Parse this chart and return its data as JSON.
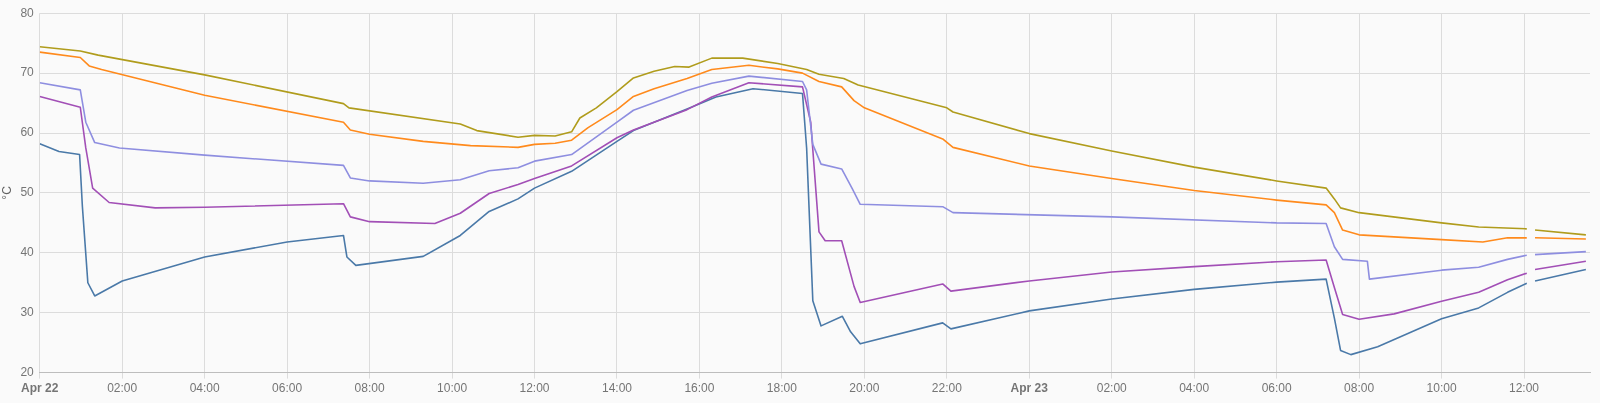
{
  "chart_data": {
    "type": "line",
    "ylabel": "°C",
    "xlim": [
      "--04-22T00:00",
      "--04-23T13:36"
    ],
    "ylim": [
      20,
      80
    ],
    "xticks": [
      {
        "value": "--04-22T00:00",
        "label": "Apr 22"
      },
      {
        "value": "--04-22T02:00",
        "label": "02:00"
      },
      {
        "value": "--04-22T04:00",
        "label": "04:00"
      },
      {
        "value": "--04-22T06:00",
        "label": "06:00"
      },
      {
        "value": "--04-22T08:00",
        "label": "08:00"
      },
      {
        "value": "--04-22T10:00",
        "label": "10:00"
      },
      {
        "value": "--04-22T12:00",
        "label": "12:00"
      },
      {
        "value": "--04-22T14:00",
        "label": "14:00"
      },
      {
        "value": "--04-22T16:00",
        "label": "16:00"
      },
      {
        "value": "--04-22T18:00",
        "label": "18:00"
      },
      {
        "value": "--04-22T20:00",
        "label": "20:00"
      },
      {
        "value": "--04-22T22:00",
        "label": "22:00"
      },
      {
        "value": "--04-23T00:00",
        "label": "Apr 23"
      },
      {
        "value": "--04-23T02:00",
        "label": "02:00"
      },
      {
        "value": "--04-23T04:00",
        "label": "04:00"
      },
      {
        "value": "--04-23T06:00",
        "label": "06:00"
      },
      {
        "value": "--04-23T08:00",
        "label": "08:00"
      },
      {
        "value": "--04-23T10:00",
        "label": "10:00"
      },
      {
        "value": "--04-23T12:00",
        "label": "12:00"
      }
    ],
    "yticks": [
      20,
      30,
      40,
      50,
      60,
      70,
      80
    ],
    "grid": true,
    "legend": false,
    "marker": "none",
    "line_style": "solid",
    "series": [
      {
        "color": "#b09c1c",
        "x": [
          "--04-22T00:00",
          "--04-22T00:59",
          "--04-22T01:25",
          "--04-22T04:00",
          "--04-22T07:22",
          "--04-22T07:30",
          "--04-22T10:12",
          "--04-22T10:36",
          "--04-22T11:36",
          "--04-22T12:00",
          "--04-22T12:30",
          "--04-22T12:54",
          "--04-22T13:06",
          "--04-22T13:30",
          "--04-22T14:00",
          "--04-22T14:24",
          "--04-22T14:54",
          "--04-22T15:24",
          "--04-22T15:45",
          "--04-22T16:18",
          "--04-22T17:03",
          "--04-22T17:54",
          "--04-22T18:36",
          "--04-22T18:54",
          "--04-22T19:30",
          "--04-22T19:51",
          "--04-22T22:00",
          "--04-22T22:09",
          "--04-23T00:00",
          "--04-23T02:00",
          "--04-23T04:00",
          "--04-23T06:00",
          "--04-23T07:12",
          "--04-23T07:24",
          "--04-23T07:33",
          "--04-23T08:00",
          "--04-23T10:00",
          "--04-23T10:54",
          "--04-23T12:04",
          "--04-23T12:10",
          "--04-23T12:16",
          "--04-23T13:30"
        ],
        "values": [
          74.4,
          73.7,
          73,
          69.7,
          64.9,
          64.2,
          61.5,
          60.4,
          59.3,
          59.6,
          59.5,
          60.2,
          62.5,
          64.2,
          66.9,
          69.2,
          70.3,
          71.1,
          71,
          72.5,
          72.5,
          71.6,
          70.6,
          69.8,
          69.1,
          68,
          64.2,
          63.5,
          59.9,
          57,
          54.3,
          52,
          50.8,
          49,
          47.5,
          46.7,
          45,
          44.3,
          44,
          null,
          43.8,
          43
        ]
      },
      {
        "color": "#ff8a1c",
        "x": [
          "--04-22T00:00",
          "--04-22T00:59",
          "--04-22T01:12",
          "--04-22T01:30",
          "--04-22T04:00",
          "--04-22T07:22",
          "--04-22T07:32",
          "--04-22T08:00",
          "--04-22T09:18",
          "--04-22T10:27",
          "--04-22T11:36",
          "--04-22T12:00",
          "--04-22T12:30",
          "--04-22T12:54",
          "--04-22T13:18",
          "--04-22T14:00",
          "--04-22T14:24",
          "--04-22T14:54",
          "--04-22T15:42",
          "--04-22T16:18",
          "--04-22T17:12",
          "--04-22T17:54",
          "--04-22T18:30",
          "--04-22T18:54",
          "--04-22T19:27",
          "--04-22T19:45",
          "--04-22T20:00",
          "--04-22T21:54",
          "--04-22T22:09",
          "--04-23T00:00",
          "--04-23T02:00",
          "--04-23T04:00",
          "--04-23T06:00",
          "--04-23T07:12",
          "--04-23T07:24",
          "--04-23T07:36",
          "--04-23T08:00",
          "--04-23T10:00",
          "--04-23T11:00",
          "--04-23T11:36",
          "--04-23T12:04",
          "--04-23T12:10",
          "--04-23T12:16",
          "--04-23T13:30"
        ],
        "values": [
          73.5,
          72.6,
          71.2,
          70.6,
          66.3,
          61.8,
          60.5,
          59.8,
          58.6,
          57.9,
          57.6,
          58.1,
          58.3,
          58.8,
          60.9,
          63.9,
          66.1,
          67.4,
          69.1,
          70.6,
          71.3,
          70.7,
          70,
          68.6,
          67.7,
          65.4,
          64.2,
          59,
          57.6,
          54.5,
          52.4,
          50.4,
          48.8,
          48,
          46.7,
          43.8,
          43,
          42.2,
          41.8,
          42.5,
          42.5,
          null,
          42.5,
          42.3
        ]
      },
      {
        "color": "#8e8ee0",
        "x": [
          "--04-22T00:00",
          "--04-22T00:59",
          "--04-22T01:07",
          "--04-22T01:20",
          "--04-22T01:56",
          "--04-22T04:00",
          "--04-22T07:22",
          "--04-22T07:32",
          "--04-22T08:00",
          "--04-22T09:18",
          "--04-22T10:12",
          "--04-22T10:54",
          "--04-22T11:36",
          "--04-22T12:00",
          "--04-22T12:54",
          "--04-22T14:00",
          "--04-22T14:24",
          "--04-22T15:42",
          "--04-22T16:18",
          "--04-22T17:12",
          "--04-22T18:30",
          "--04-22T18:36",
          "--04-22T18:45",
          "--04-22T18:57",
          "--04-22T19:27",
          "--04-22T19:42",
          "--04-22T19:54",
          "--04-22T21:54",
          "--04-22T22:09",
          "--04-23T02:00",
          "--04-23T06:00",
          "--04-23T07:12",
          "--04-23T07:24",
          "--04-23T07:36",
          "--04-23T08:12",
          "--04-23T08:15",
          "--04-23T10:00",
          "--04-23T10:54",
          "--04-23T11:36",
          "--04-23T12:04",
          "--04-23T12:10",
          "--04-23T12:16",
          "--04-23T13:30"
        ],
        "values": [
          68.4,
          67.2,
          61.8,
          58.4,
          57.5,
          56.3,
          54.6,
          52.5,
          52,
          51.6,
          52.2,
          53.7,
          54.2,
          55.3,
          56.4,
          61.8,
          63.8,
          67.1,
          68.3,
          69.5,
          68.6,
          67.2,
          58.1,
          54.8,
          54,
          50.8,
          48.1,
          47.7,
          46.7,
          46,
          45,
          44.9,
          41,
          38.9,
          38.6,
          35.6,
          37.1,
          37.6,
          38.9,
          39.6,
          null,
          39.7,
          40.2
        ]
      },
      {
        "color": "#a24fb6",
        "x": [
          "--04-22T00:00",
          "--04-22T00:59",
          "--04-22T01:07",
          "--04-22T01:17",
          "--04-22T01:41",
          "--04-22T02:48",
          "--04-22T04:00",
          "--04-22T07:22",
          "--04-22T07:32",
          "--04-22T08:00",
          "--04-22T09:35",
          "--04-22T10:12",
          "--04-22T10:54",
          "--04-22T11:36",
          "--04-22T12:00",
          "--04-22T12:54",
          "--04-22T14:00",
          "--04-22T14:24",
          "--04-22T15:42",
          "--04-22T16:18",
          "--04-22T17:12",
          "--04-22T18:30",
          "--04-22T18:42",
          "--04-22T18:54",
          "--04-22T19:03",
          "--04-22T19:27",
          "--04-22T19:45",
          "--04-22T19:54",
          "--04-22T21:54",
          "--04-22T22:06",
          "--04-23T00:00",
          "--04-23T02:00",
          "--04-23T04:00",
          "--04-23T06:00",
          "--04-23T07:12",
          "--04-23T07:24",
          "--04-23T07:36",
          "--04-23T08:00",
          "--04-23T08:51",
          "--04-23T10:00",
          "--04-23T10:54",
          "--04-23T11:36",
          "--04-23T12:04",
          "--04-23T12:10",
          "--04-23T12:16",
          "--04-23T13:30"
        ],
        "values": [
          66.1,
          64.3,
          57.5,
          50.8,
          48.4,
          47.5,
          47.6,
          48.2,
          46,
          45.2,
          44.9,
          46.6,
          49.9,
          51.4,
          52.4,
          54.5,
          59.2,
          60.5,
          63.9,
          66,
          68.4,
          67.7,
          61.8,
          43.5,
          42,
          42,
          34.4,
          31.7,
          34.8,
          33.6,
          35.3,
          36.8,
          37.7,
          38.5,
          38.8,
          34.2,
          29.7,
          28.9,
          29.8,
          31.9,
          33.4,
          35.5,
          36.6,
          null,
          37.2,
          38.6
        ]
      },
      {
        "color": "#4a79a8",
        "x": [
          "--04-22T00:00",
          "--04-22T00:28",
          "--04-22T00:58",
          "--04-22T01:02",
          "--04-22T01:10",
          "--04-22T01:20",
          "--04-22T02:00",
          "--04-22T04:00",
          "--04-22T06:00",
          "--04-22T07:22",
          "--04-22T07:27",
          "--04-22T07:40",
          "--04-22T09:18",
          "--04-22T10:12",
          "--04-22T10:54",
          "--04-22T11:36",
          "--04-22T12:00",
          "--04-22T12:54",
          "--04-22T14:00",
          "--04-22T14:24",
          "--04-22T15:42",
          "--04-22T16:24",
          "--04-22T17:18",
          "--04-22T18:30",
          "--04-22T18:36",
          "--04-22T18:45",
          "--04-22T18:57",
          "--04-22T19:28",
          "--04-22T19:40",
          "--04-22T19:54",
          "--04-22T21:54",
          "--04-22T22:06",
          "--04-23T00:00",
          "--04-23T02:00",
          "--04-23T04:00",
          "--04-23T06:00",
          "--04-23T07:12",
          "--04-23T07:24",
          "--04-23T07:33",
          "--04-23T07:48",
          "--04-23T08:27",
          "--04-23T10:00",
          "--04-23T10:54",
          "--04-23T11:36",
          "--04-23T12:04",
          "--04-23T12:10",
          "--04-23T12:16",
          "--04-23T13:30"
        ],
        "values": [
          58.2,
          56.9,
          56.4,
          47.8,
          35,
          32.8,
          35.3,
          39.3,
          41.8,
          42.9,
          39.3,
          37.9,
          39.4,
          42.9,
          46.9,
          49,
          50.8,
          53.6,
          58.6,
          60.4,
          64,
          66,
          67.4,
          66.6,
          57.5,
          32,
          27.8,
          29.4,
          26.8,
          24.8,
          28.3,
          27.3,
          30.3,
          32.3,
          33.9,
          35.1,
          35.6,
          29.1,
          23.7,
          23,
          24.3,
          29,
          30.8,
          33.4,
          34.9,
          null,
          35.3,
          37.2
        ]
      }
    ]
  }
}
